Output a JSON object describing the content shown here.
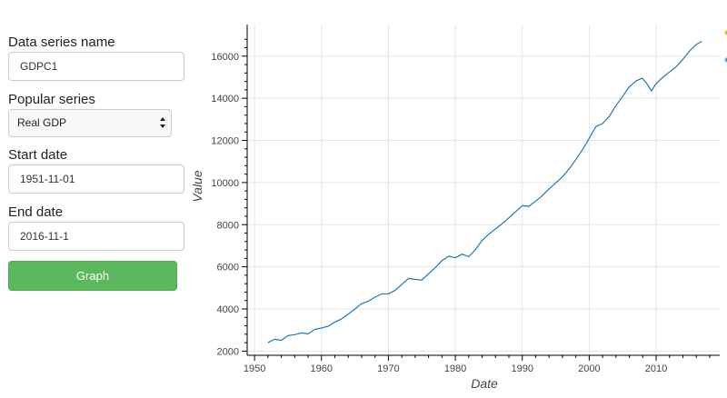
{
  "form": {
    "series_name_label": "Data series name",
    "series_name_value": "GDPC1",
    "popular_label": "Popular series",
    "popular_selected": "Real GDP",
    "start_label": "Start date",
    "start_value": "1951-11-01",
    "end_label": "End date",
    "end_value": "2016-11-1",
    "graph_button": "Graph"
  },
  "colors": {
    "line": "#1f77b4",
    "button": "#5cb85c",
    "legend_1": "#e5c100",
    "legend_2": "#5a9bd4"
  },
  "chart_data": {
    "type": "line",
    "xlabel": "Date",
    "ylabel": "Value",
    "xlim": [
      1948.9,
      2019.5
    ],
    "ylim": [
      1800,
      17500
    ],
    "x_ticks": [
      1950,
      1960,
      1970,
      1980,
      1990,
      2000,
      2010
    ],
    "y_ticks": [
      2000,
      4000,
      6000,
      8000,
      10000,
      12000,
      14000,
      16000
    ],
    "grid": true,
    "x": [
      1952.0,
      1953.0,
      1954.0,
      1955.0,
      1956.0,
      1957.0,
      1958.0,
      1959.0,
      1960.0,
      1961.0,
      1962.0,
      1963.0,
      1964.0,
      1965.0,
      1966.0,
      1967.0,
      1968.0,
      1969.0,
      1970.0,
      1971.0,
      1972.0,
      1973.0,
      1974.0,
      1975.0,
      1976.0,
      1977.0,
      1978.0,
      1979.0,
      1980.0,
      1981.0,
      1982.0,
      1983.0,
      1984.0,
      1985.0,
      1986.0,
      1987.0,
      1988.0,
      1989.0,
      1990.0,
      1991.0,
      1992.0,
      1993.0,
      1994.0,
      1995.0,
      1996.0,
      1997.0,
      1998.0,
      1999.0,
      2000.0,
      2001.0,
      2002.0,
      2003.0,
      2004.0,
      2005.0,
      2006.0,
      2007.0,
      2007.9,
      2008.5,
      2009.3,
      2010.0,
      2011.0,
      2012.0,
      2013.0,
      2014.0,
      2015.0,
      2016.0,
      2016.8
    ],
    "series": [
      {
        "values": [
          2400,
          2560,
          2510,
          2730,
          2780,
          2860,
          2820,
          3030,
          3100,
          3180,
          3380,
          3530,
          3760,
          4000,
          4250,
          4370,
          4560,
          4710,
          4720,
          4880,
          5160,
          5450,
          5400,
          5370,
          5670,
          5960,
          6300,
          6500,
          6430,
          6600,
          6480,
          6820,
          7250,
          7550,
          7800,
          8050,
          8320,
          8620,
          8900,
          8870,
          9120,
          9380,
          9700,
          9980,
          10270,
          10650,
          11080,
          11560,
          12100,
          12650,
          12800,
          13150,
          13650,
          14100,
          14550,
          14820,
          14950,
          14750,
          14350,
          14700,
          15000,
          15250,
          15500,
          15850,
          16250,
          16550,
          16700
        ]
      }
    ]
  }
}
